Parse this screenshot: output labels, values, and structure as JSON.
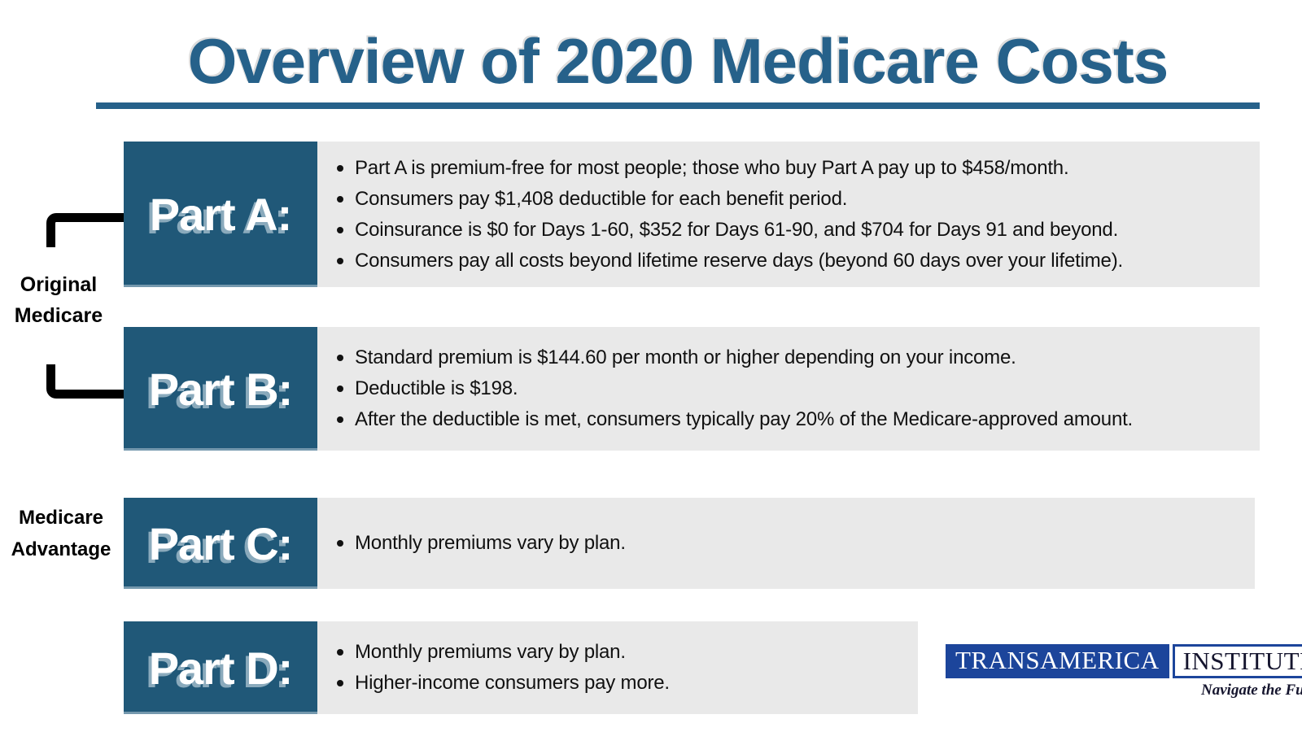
{
  "title": "Overview of 2020 Medicare Costs",
  "colors": {
    "box_teal": "#205878",
    "title_teal": "#26618A",
    "bullet_bg_gray": "#E9E9E9",
    "logo_blue": "#1C459B",
    "bracket_black": "#000000"
  },
  "groups": {
    "original_medicare": {
      "line1": "Original",
      "line2": "Medicare"
    },
    "medicare_advantage": {
      "line1": "Medicare",
      "line2": "Advantage"
    }
  },
  "rows": [
    {
      "label": "Part A:",
      "bullets": [
        "Part A is premium-free for most people; those who buy Part A pay up to $458/month.",
        "Consumers pay $1,408 deductible for each benefit period.",
        "Coinsurance is $0 for Days 1-60, $352 for Days 61-90, and $704 for Days 91 and beyond.",
        "Consumers pay all costs beyond lifetime reserve days (beyond 60 days over your lifetime)."
      ]
    },
    {
      "label": "Part B:",
      "bullets": [
        "Standard premium is $144.60 per month or higher depending on your income.",
        "Deductible is $198.",
        "After the deductible is met, consumers typically pay 20% of the Medicare-approved amount."
      ]
    },
    {
      "label": "Part C:",
      "bullets": [
        "Monthly premiums vary by plan."
      ]
    },
    {
      "label": "Part D:",
      "bullets": [
        "Monthly premiums vary by plan.",
        "Higher-income consumers pay more."
      ]
    }
  ],
  "logo": {
    "brand": "TRANSAMERICA",
    "unit": "INSTITUTE",
    "registered": "®",
    "tagline": "Navigate the Future."
  }
}
